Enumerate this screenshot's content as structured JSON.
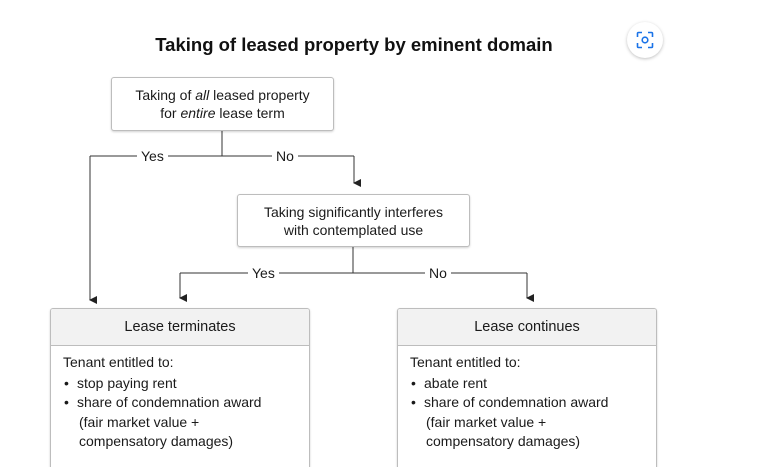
{
  "title": "Taking of leased property by eminent domain",
  "lens_button": {
    "icon": "image-search-icon"
  },
  "nodes": {
    "start": {
      "line1_prefix": "Taking of ",
      "line1_em": "all",
      "line1_suffix": " leased property",
      "line2_prefix": "for ",
      "line2_em": "entire",
      "line2_suffix": " lease term"
    },
    "decision": {
      "line1": "Taking significantly interferes",
      "line2": "with contemplated use"
    }
  },
  "edges": {
    "top_yes": "Yes",
    "top_no": "No",
    "mid_yes": "Yes",
    "mid_no": "No"
  },
  "results": {
    "terminates": {
      "header": "Lease terminates",
      "intro": "Tenant entitled to:",
      "bullet1": "stop paying rent",
      "bullet2": "share of condemnation award",
      "bullet2_sub1": "(fair market value +",
      "bullet2_sub2": "compensatory damages)"
    },
    "continues": {
      "header": "Lease continues",
      "intro": "Tenant entitled to:",
      "bullet1": "abate rent",
      "bullet2": "share of condemnation award",
      "bullet2_sub1": "(fair market value +",
      "bullet2_sub2": "compensatory damages)"
    }
  }
}
